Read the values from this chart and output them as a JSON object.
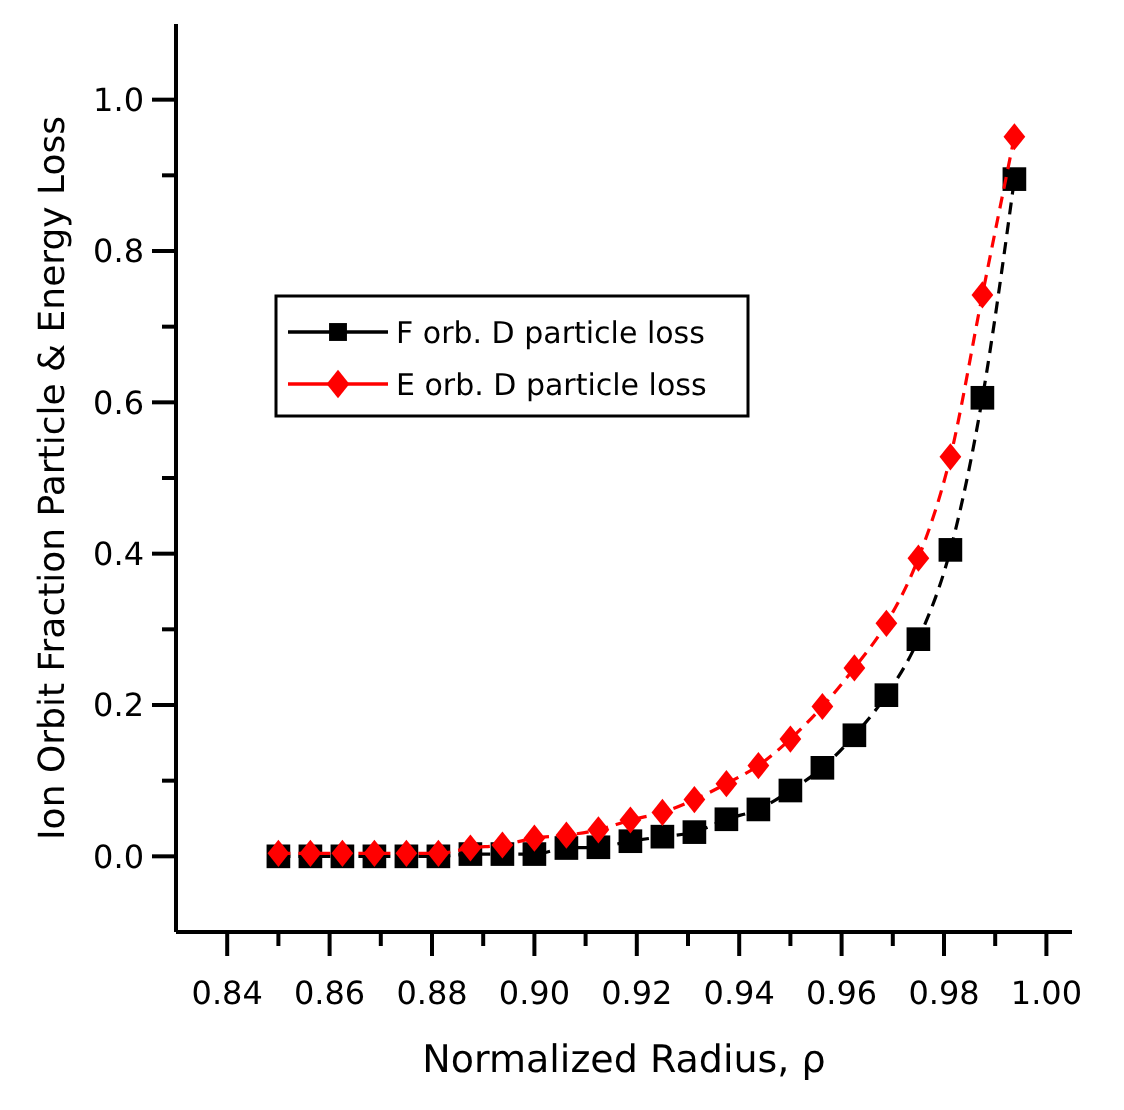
{
  "chart_data": {
    "type": "line",
    "xlabel": "Normalized Radius, ρ",
    "ylabel": "Ion Orbit Fraction Particle & Energy Loss",
    "x": [
      0.85,
      0.85625,
      0.8625,
      0.86875,
      0.875,
      0.88125,
      0.8875,
      0.89375,
      0.9,
      0.90625,
      0.9125,
      0.91875,
      0.925,
      0.93125,
      0.9375,
      0.94375,
      0.95,
      0.95625,
      0.9625,
      0.96875,
      0.975,
      0.98125,
      0.9875,
      0.99375
    ],
    "series": [
      {
        "name": "F orb. D particle loss",
        "color": "#000000",
        "marker": "square",
        "values": [
          0,
          0,
          0,
          0,
          0,
          0,
          0.003,
          0.003,
          0.003,
          0.011,
          0.012,
          0.02,
          0.026,
          0.032,
          0.049,
          0.062,
          0.087,
          0.117,
          0.16,
          0.213,
          0.287,
          0.405,
          0.606,
          0.895
        ]
      },
      {
        "name": "E orb. D particle loss",
        "color": "#ff0000",
        "marker": "diamond",
        "values": [
          0.004,
          0.004,
          0.004,
          0.004,
          0.004,
          0.004,
          0.011,
          0.015,
          0.024,
          0.028,
          0.035,
          0.048,
          0.058,
          0.075,
          0.096,
          0.12,
          0.155,
          0.198,
          0.249,
          0.308,
          0.394,
          0.528,
          0.742,
          0.951
        ]
      }
    ],
    "xlim": [
      0.83,
      1.005
    ],
    "xticks": [
      {
        "value": 0.84,
        "label": "0.84"
      },
      {
        "value": 0.85,
        "label": null
      },
      {
        "value": 0.86,
        "label": "0.86"
      },
      {
        "value": 0.87,
        "label": null
      },
      {
        "value": 0.88,
        "label": "0.88"
      },
      {
        "value": 0.89,
        "label": null
      },
      {
        "value": 0.9,
        "label": "0.90"
      },
      {
        "value": 0.91,
        "label": null
      },
      {
        "value": 0.92,
        "label": "0.92"
      },
      {
        "value": 0.93,
        "label": null
      },
      {
        "value": 0.94,
        "label": "0.94"
      },
      {
        "value": 0.95,
        "label": null
      },
      {
        "value": 0.96,
        "label": "0.96"
      },
      {
        "value": 0.97,
        "label": null
      },
      {
        "value": 0.98,
        "label": "0.98"
      },
      {
        "value": 0.99,
        "label": null
      },
      {
        "value": 1.0,
        "label": "1.00"
      }
    ],
    "ylim": [
      -0.1,
      1.1
    ],
    "yticks": [
      {
        "value": 0,
        "label": "0.0"
      },
      {
        "value": 0.1,
        "label": null
      },
      {
        "value": 0.2,
        "label": "0.2"
      },
      {
        "value": 0.3,
        "label": null
      },
      {
        "value": 0.4,
        "label": "0.4"
      },
      {
        "value": 0.5,
        "label": null
      },
      {
        "value": 0.6,
        "label": "0.6"
      },
      {
        "value": 0.7,
        "label": null
      },
      {
        "value": 0.8,
        "label": "0.8"
      },
      {
        "value": 0.9,
        "label": null
      },
      {
        "value": 1.0,
        "label": "1.0"
      }
    ],
    "legend": "top left",
    "line_style": "dashed",
    "grid": false
  }
}
